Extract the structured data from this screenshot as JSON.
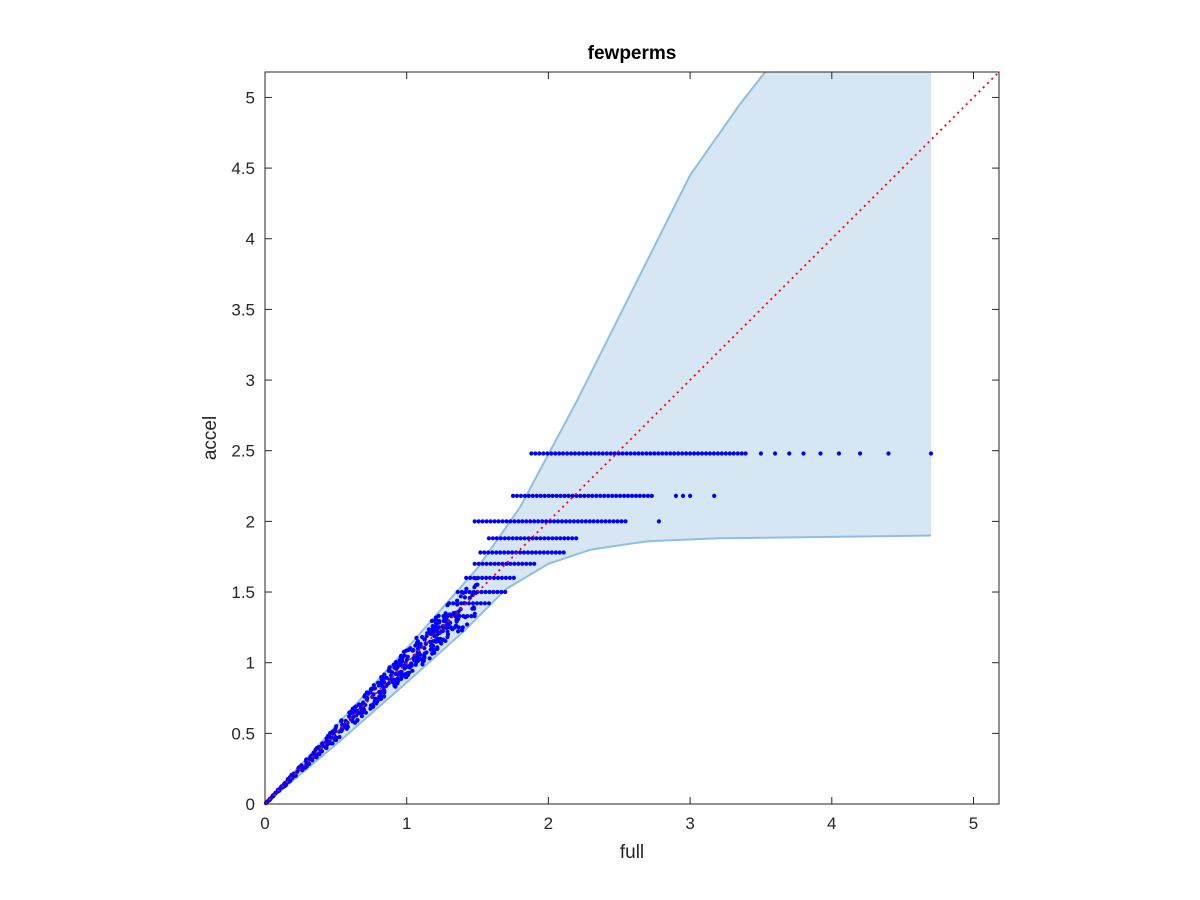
{
  "chart_data": {
    "type": "scatter",
    "title": "fewperms",
    "xlabel": "full",
    "ylabel": "accel",
    "xlim": [
      0,
      5.18
    ],
    "ylim": [
      0,
      5.18
    ],
    "grid": false,
    "xticks": [
      0,
      1,
      2,
      3,
      4,
      5
    ],
    "xtick_labels": [
      "0",
      "1",
      "2",
      "3",
      "4",
      "5"
    ],
    "yticks": [
      0,
      0.5,
      1,
      1.5,
      2,
      2.5,
      3,
      3.5,
      4,
      4.5,
      5
    ],
    "ytick_labels": [
      "0",
      "0.5",
      "1",
      "1.5",
      "2",
      "2.5",
      "3",
      "3.5",
      "4",
      "4.5",
      "5"
    ],
    "colors": {
      "points": "#0000ff",
      "band_fill": "#d6e7f3",
      "band_edge": "#8ec0de",
      "reference": "#ff0000",
      "axes": "#262626"
    },
    "reference_line": {
      "style": "dotted",
      "x": [
        0,
        5.18
      ],
      "y": [
        0,
        5.18
      ]
    },
    "band": {
      "upper": [
        [
          0,
          0
        ],
        [
          0.5,
          0.55
        ],
        [
          1,
          1.1
        ],
        [
          1.5,
          1.67
        ],
        [
          1.8,
          2.1
        ],
        [
          2.2,
          2.85
        ],
        [
          2.6,
          3.65
        ],
        [
          3,
          4.45
        ],
        [
          3.35,
          4.95
        ],
        [
          3.53,
          5.18
        ],
        [
          4.7,
          5.18
        ]
      ],
      "lower": [
        [
          0,
          0
        ],
        [
          0.5,
          0.42
        ],
        [
          1,
          0.86
        ],
        [
          1.4,
          1.22
        ],
        [
          1.7,
          1.52
        ],
        [
          2,
          1.7
        ],
        [
          2.3,
          1.8
        ],
        [
          2.7,
          1.86
        ],
        [
          3.2,
          1.88
        ],
        [
          4,
          1.89
        ],
        [
          4.7,
          1.9
        ]
      ]
    },
    "scatter_clusters": [
      {
        "x_range": [
          0,
          1.3
        ],
        "slope_range": [
          0.9,
          1.1
        ],
        "count": 420
      },
      {
        "x_range": [
          1.1,
          1.5
        ],
        "slope_range": [
          0.88,
          1.08
        ],
        "count": 60
      },
      {
        "level_y": 1.25,
        "x_range": [
          1.2,
          1.4
        ]
      },
      {
        "level_y": 1.33,
        "x_range": [
          1.26,
          1.48
        ]
      },
      {
        "level_y": 1.42,
        "x_range": [
          1.3,
          1.58
        ]
      },
      {
        "level_y": 1.5,
        "x_range": [
          1.36,
          1.72
        ]
      },
      {
        "level_y": 1.6,
        "x_range": [
          1.42,
          1.78
        ]
      },
      {
        "level_y": 1.7,
        "x_range": [
          1.48,
          1.9
        ]
      },
      {
        "level_y": 1.78,
        "x_range": [
          1.52,
          2.12
        ]
      },
      {
        "level_y": 1.88,
        "x_range": [
          1.58,
          2.22
        ]
      },
      {
        "level_y": 2.0,
        "x_range": [
          1.48,
          2.55
        ],
        "extra_x": [
          2.78
        ]
      },
      {
        "level_y": 2.18,
        "x_range": [
          1.75,
          2.75
        ],
        "extra_x": [
          2.9,
          2.95,
          3.0,
          3.17
        ]
      },
      {
        "level_y": 2.48,
        "x_range": [
          1.88,
          3.4
        ],
        "extra_x": [
          3.5,
          3.6,
          3.7,
          3.8,
          3.92,
          4.05,
          4.2,
          4.4,
          4.7
        ]
      }
    ]
  }
}
